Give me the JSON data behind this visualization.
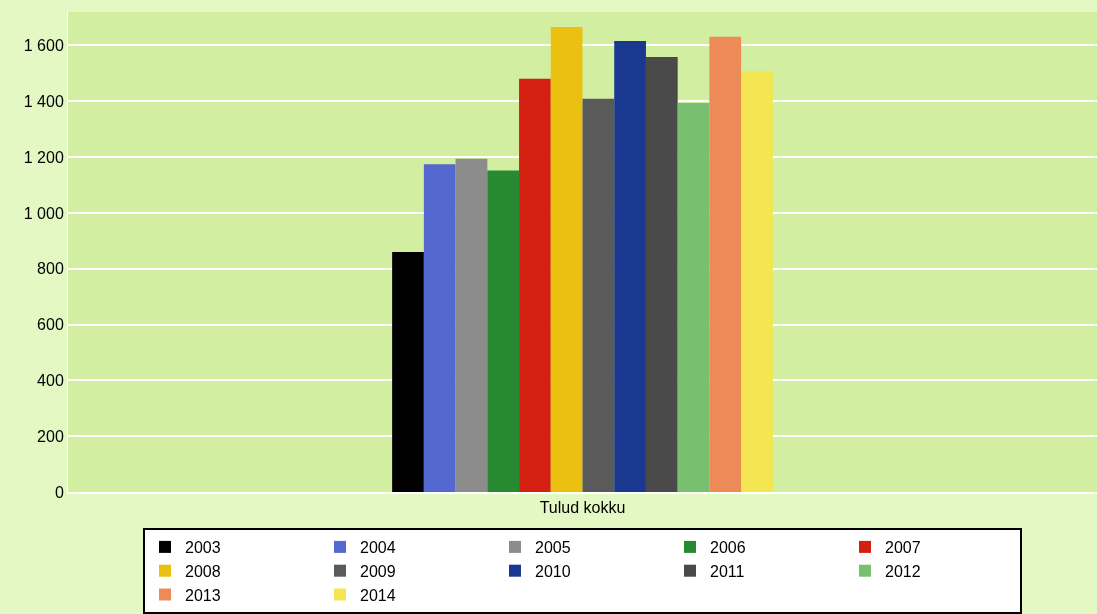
{
  "chart_data": {
    "type": "bar",
    "categories": [
      "Tulud kokku"
    ],
    "series": [
      {
        "name": "2003",
        "color": "#000000",
        "values": [
          860
        ]
      },
      {
        "name": "2004",
        "color": "#5468d0",
        "values": [
          1174
        ]
      },
      {
        "name": "2005",
        "color": "#8c8c8c",
        "values": [
          1194
        ]
      },
      {
        "name": "2006",
        "color": "#288a30",
        "values": [
          1152
        ]
      },
      {
        "name": "2007",
        "color": "#d42010",
        "values": [
          1481
        ]
      },
      {
        "name": "2008",
        "color": "#ecc010",
        "values": [
          1666
        ]
      },
      {
        "name": "2009",
        "color": "#5a5a5a",
        "values": [
          1409
        ]
      },
      {
        "name": "2010",
        "color": "#1a3890",
        "values": [
          1616
        ]
      },
      {
        "name": "2011",
        "color": "#4a4a4a",
        "values": [
          1559
        ]
      },
      {
        "name": "2012",
        "color": "#78c070",
        "values": [
          1394
        ]
      },
      {
        "name": "2013",
        "color": "#ec8a58",
        "values": [
          1631
        ]
      },
      {
        "name": "2014",
        "color": "#f4e650",
        "values": [
          1509
        ]
      }
    ],
    "ylim": [
      0,
      1720
    ],
    "yticks": [
      0,
      200,
      400,
      600,
      800,
      {
        "value": 1000,
        "label": "1 000"
      },
      {
        "value": 1200,
        "label": "1 200"
      },
      {
        "value": 1400,
        "label": "1 400"
      },
      {
        "value": 1600,
        "label": "1 600"
      }
    ],
    "grid": "y",
    "legend": "bottom"
  }
}
